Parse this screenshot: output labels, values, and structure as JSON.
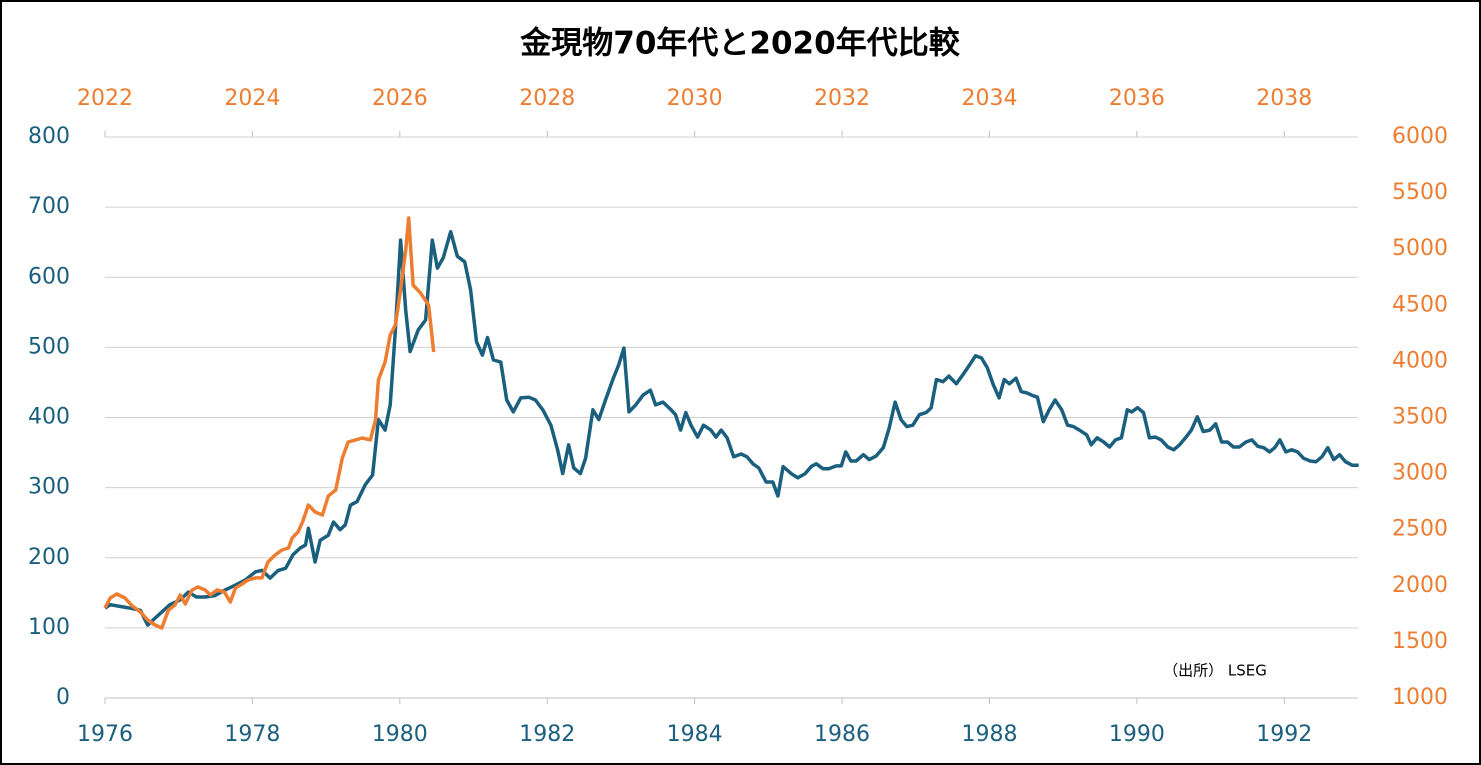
{
  "chart_data": {
    "type": "line",
    "title": "金現物70年代と2020年代比較",
    "annotation": "（出所） LSEG",
    "xlim": [
      1976,
      1993
    ],
    "xticks": [
      1976,
      1978,
      1980,
      1982,
      1984,
      1986,
      1988,
      1990,
      1992
    ],
    "x2lim": [
      2022,
      2039
    ],
    "x2ticks": [
      2022,
      2024,
      2026,
      2028,
      2030,
      2032,
      2034,
      2036,
      2038
    ],
    "ylim": [
      0,
      800
    ],
    "yticks": [
      0,
      100,
      200,
      300,
      400,
      500,
      600,
      700,
      800
    ],
    "y2lim": [
      1000,
      6000
    ],
    "y2ticks": [
      1000,
      1500,
      2000,
      2500,
      3000,
      3500,
      4000,
      4500,
      5000,
      5500,
      6000
    ],
    "grid": true,
    "series": [
      {
        "color": "#1b5f7e",
        "xaxis": "x",
        "x": [
          1976.0,
          1976.07,
          1976.34,
          1976.48,
          1976.58,
          1976.68,
          1976.88,
          1977.02,
          1977.13,
          1977.24,
          1977.36,
          1977.49,
          1977.63,
          1977.77,
          1977.9,
          1978.04,
          1978.13,
          1978.24,
          1978.35,
          1978.45,
          1978.55,
          1978.65,
          1978.72,
          1978.76,
          1978.85,
          1978.92,
          1979.03,
          1979.1,
          1979.19,
          1979.26,
          1979.33,
          1979.42,
          1979.53,
          1979.63,
          1979.71,
          1979.8,
          1979.87,
          1979.94,
          1980.01,
          1980.08,
          1980.14,
          1980.25,
          1980.35,
          1980.44,
          1980.51,
          1980.59,
          1980.69,
          1980.78,
          1980.88,
          1980.96,
          1981.04,
          1981.12,
          1981.19,
          1981.27,
          1981.37,
          1981.45,
          1981.54,
          1981.64,
          1981.75,
          1981.84,
          1981.94,
          1982.05,
          1982.14,
          1982.21,
          1982.29,
          1982.36,
          1982.45,
          1982.52,
          1982.62,
          1982.7,
          1982.79,
          1982.89,
          1982.97,
          1983.04,
          1983.11,
          1983.2,
          1983.3,
          1983.4,
          1983.47,
          1983.57,
          1983.68,
          1983.74,
          1983.81,
          1983.88,
          1983.95,
          1984.04,
          1984.12,
          1984.22,
          1984.29,
          1984.36,
          1984.44,
          1984.53,
          1984.63,
          1984.71,
          1984.79,
          1984.87,
          1984.97,
          1985.06,
          1985.13,
          1985.2,
          1985.31,
          1985.4,
          1985.5,
          1985.58,
          1985.65,
          1985.74,
          1985.82,
          1985.92,
          1985.99,
          1986.05,
          1986.12,
          1986.19,
          1986.29,
          1986.37,
          1986.46,
          1986.56,
          1986.64,
          1986.72,
          1986.8,
          1986.88,
          1986.96,
          1987.05,
          1987.14,
          1987.21,
          1987.28,
          1987.37,
          1987.45,
          1987.55,
          1987.64,
          1987.73,
          1987.81,
          1987.89,
          1987.97,
          1988.05,
          1988.13,
          1988.2,
          1988.27,
          1988.36,
          1988.43,
          1988.51,
          1988.57,
          1988.65,
          1988.73,
          1988.81,
          1988.89,
          1988.98,
          1989.06,
          1989.14,
          1989.22,
          1989.32,
          1989.38,
          1989.46,
          1989.55,
          1989.63,
          1989.71,
          1989.79,
          1989.87,
          1989.93,
          1990.01,
          1990.09,
          1990.17,
          1990.25,
          1990.33,
          1990.42,
          1990.5,
          1990.58,
          1990.66,
          1990.74,
          1990.82,
          1990.9,
          1990.99,
          1991.07,
          1991.15,
          1991.23,
          1991.31,
          1991.39,
          1991.48,
          1991.56,
          1991.64,
          1991.72,
          1991.8,
          1991.87,
          1991.94,
          1992.02,
          1992.1,
          1992.18,
          1992.26,
          1992.35,
          1992.43,
          1992.51,
          1992.59,
          1992.67,
          1992.75,
          1992.83,
          1992.92,
          1993.01
        ],
        "values": [
          128,
          133,
          128,
          125,
          104,
          114,
          133,
          140,
          151,
          144,
          144,
          146,
          154,
          161,
          168,
          180,
          182,
          171,
          182,
          185,
          204,
          214,
          218,
          242,
          194,
          225,
          232,
          251,
          240,
          247,
          275,
          280,
          304,
          318,
          397,
          382,
          418,
          525,
          653,
          553,
          494,
          525,
          539,
          653,
          613,
          628,
          665,
          630,
          622,
          582,
          508,
          489,
          514,
          482,
          479,
          425,
          408,
          428,
          429,
          425,
          411,
          389,
          354,
          320,
          361,
          328,
          320,
          342,
          411,
          397,
          425,
          454,
          475,
          499,
          408,
          418,
          432,
          439,
          418,
          422,
          411,
          404,
          382,
          407,
          389,
          372,
          389,
          382,
          372,
          382,
          371,
          344,
          348,
          344,
          334,
          328,
          308,
          308,
          288,
          330,
          320,
          314,
          320,
          330,
          334,
          327,
          327,
          331,
          331,
          351,
          338,
          338,
          347,
          340,
          345,
          357,
          385,
          422,
          397,
          387,
          389,
          404,
          407,
          414,
          454,
          451,
          459,
          448,
          461,
          475,
          488,
          485,
          471,
          447,
          428,
          454,
          448,
          456,
          437,
          435,
          432,
          429,
          394,
          411,
          425,
          411,
          389,
          387,
          382,
          375,
          361,
          371,
          365,
          358,
          368,
          371,
          411,
          408,
          414,
          407,
          371,
          372,
          368,
          358,
          354,
          361,
          371,
          382,
          401,
          380,
          382,
          391,
          365,
          365,
          358,
          358,
          365,
          368,
          359,
          357,
          351,
          357,
          368,
          351,
          354,
          351,
          342,
          338,
          337,
          344,
          357,
          340,
          347,
          337,
          332,
          332
        ]
      },
      {
        "color": "#ed7d31",
        "xaxis": "x2",
        "axis": "y2",
        "x": [
          2022.0,
          2022.07,
          2022.16,
          2022.27,
          2022.37,
          2022.48,
          2022.58,
          2022.68,
          2022.77,
          2022.86,
          2022.95,
          2023.02,
          2023.09,
          2023.18,
          2023.26,
          2023.36,
          2023.43,
          2023.52,
          2023.62,
          2023.7,
          2023.77,
          2023.86,
          2023.94,
          2024.04,
          2024.13,
          2024.21,
          2024.31,
          2024.4,
          2024.49,
          2024.54,
          2024.62,
          2024.68,
          2024.76,
          2024.85,
          2024.95,
          2025.03,
          2025.13,
          2025.22,
          2025.3,
          2025.4,
          2025.49,
          2025.6,
          2025.67,
          2025.71,
          2025.8,
          2025.87,
          2025.94,
          2026.01,
          2026.08,
          2026.12,
          2026.18,
          2026.28,
          2026.39,
          2026.46
        ],
        "values": [
          1802,
          1891,
          1927,
          1891,
          1820,
          1767,
          1695,
          1651,
          1624,
          1784,
          1829,
          1918,
          1838,
          1963,
          1989,
          1963,
          1918,
          1963,
          1945,
          1856,
          1980,
          2016,
          2052,
          2070,
          2070,
          2212,
          2275,
          2319,
          2337,
          2426,
          2480,
          2569,
          2720,
          2658,
          2631,
          2800,
          2854,
          3139,
          3282,
          3300,
          3317,
          3300,
          3478,
          3834,
          3995,
          4235,
          4325,
          4637,
          4993,
          5278,
          4681,
          4610,
          4503,
          4084
        ]
      }
    ]
  }
}
